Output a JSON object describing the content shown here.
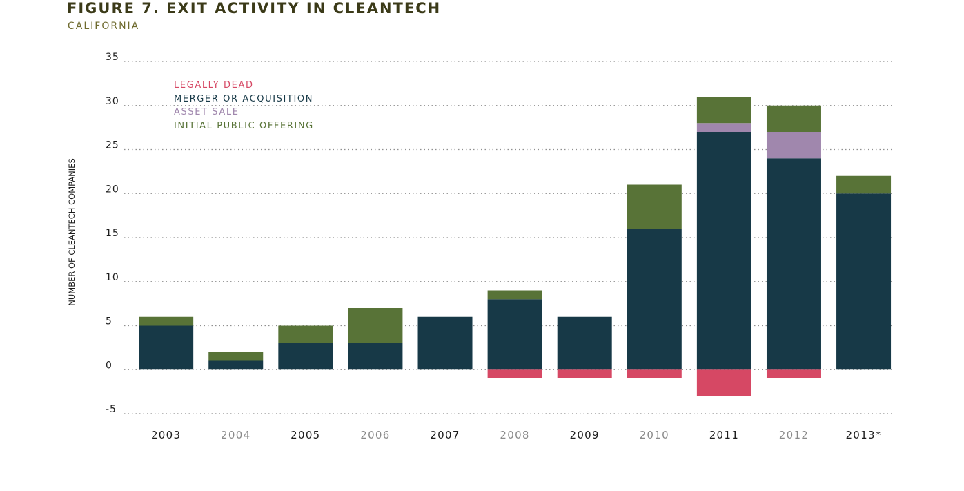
{
  "title": "FIGURE 7. EXIT ACTIVITY IN CLEANTECH",
  "subtitle": "CALIFORNIA",
  "colors": {
    "legally_dead": "#d64864",
    "merger_acquisition": "#173947",
    "asset_sale": "#a087ad",
    "ipo": "#587337",
    "axis_text": "#1d1d1d",
    "year_dark": "#1d1d1d",
    "year_light": "#8a8a8a",
    "grid": "#8f8f8f"
  },
  "legend": [
    {
      "label": "LEGALLY DEAD",
      "color": "#d64864"
    },
    {
      "label": "MERGER OR ACQUISITION",
      "color": "#173947"
    },
    {
      "label": "ASSET SALE",
      "color": "#a087ad"
    },
    {
      "label": "INITIAL PUBLIC OFFERING",
      "color": "#587337"
    }
  ],
  "chart_data": {
    "type": "bar",
    "stacked": true,
    "title": "FIGURE 7. EXIT ACTIVITY IN CLEANTECH",
    "subtitle": "CALIFORNIA",
    "ylabel": "NUMBER OF CLEANTECH COMPANIES",
    "xlabel": "",
    "ylim": [
      -5,
      35
    ],
    "yticks": [
      35,
      30,
      25,
      20,
      15,
      10,
      5,
      0,
      -5
    ],
    "grid": true,
    "legend_position": "top-left",
    "categories": [
      "2003",
      "2004",
      "2005",
      "2006",
      "2007",
      "2008",
      "2009",
      "2010",
      "2011",
      "2012",
      "2013*"
    ],
    "series": [
      {
        "name": "LEGALLY DEAD",
        "values": [
          0,
          0,
          0,
          0,
          0,
          -1,
          -1,
          -1,
          -3,
          -1,
          0
        ]
      },
      {
        "name": "MERGER OR ACQUISITION",
        "values": [
          5,
          1,
          3,
          3,
          6,
          8,
          6,
          16,
          27,
          24,
          20
        ]
      },
      {
        "name": "ASSET SALE",
        "values": [
          0,
          0,
          0,
          0,
          0,
          0,
          0,
          0,
          1,
          3,
          0
        ]
      },
      {
        "name": "INITIAL PUBLIC OFFERING",
        "values": [
          1,
          1,
          2,
          4,
          0,
          1,
          0,
          5,
          3,
          3,
          2
        ]
      }
    ]
  }
}
